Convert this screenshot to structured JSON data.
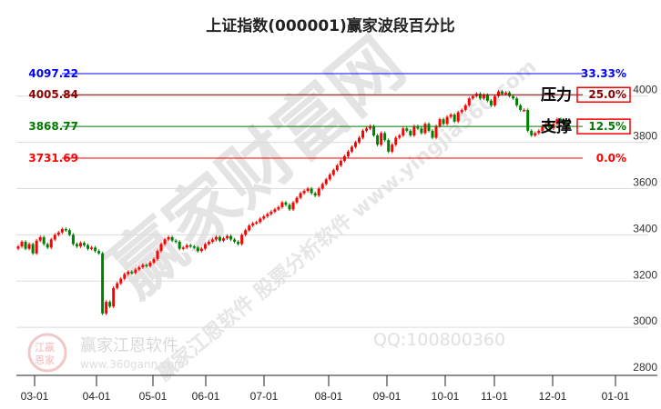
{
  "chart_data": {
    "type": "candlestick",
    "title": "上证指数(000001)赢家波段百分比",
    "x_tick_labels": [
      "03-01",
      "04-01",
      "05-01",
      "06-01",
      "07-01",
      "08-01",
      "09-01",
      "10-01",
      "11-01",
      "12-01",
      "01-01"
    ],
    "y_tick_labels": [
      "4000",
      "3800",
      "3600",
      "3400",
      "3200",
      "3000",
      "2800"
    ],
    "y_ticks": [
      4000,
      3800,
      3600,
      3400,
      3200,
      3000,
      2800
    ],
    "ylim": [
      2800,
      4097.22
    ],
    "grid": true,
    "closes": [
      3350,
      3370,
      3340,
      3360,
      3320,
      3375,
      3390,
      3360,
      3345,
      3380,
      3400,
      3410,
      3425,
      3420,
      3400,
      3360,
      3350,
      3365,
      3355,
      3340,
      3345,
      3330,
      3320,
      3060,
      3110,
      3090,
      3170,
      3190,
      3210,
      3230,
      3240,
      3235,
      3250,
      3260,
      3270,
      3265,
      3280,
      3295,
      3330,
      3360,
      3380,
      3390,
      3375,
      3370,
      3340,
      3345,
      3355,
      3350,
      3345,
      3330,
      3340,
      3360,
      3370,
      3380,
      3390,
      3375,
      3385,
      3395,
      3380,
      3370,
      3360,
      3400,
      3420,
      3440,
      3450,
      3455,
      3470,
      3480,
      3490,
      3500,
      3510,
      3520,
      3540,
      3530,
      3510,
      3540,
      3560,
      3580,
      3590,
      3600,
      3580,
      3570,
      3600,
      3620,
      3640,
      3660,
      3680,
      3700,
      3720,
      3740,
      3760,
      3780,
      3800,
      3820,
      3850,
      3860,
      3870,
      3830,
      3790,
      3840,
      3810,
      3760,
      3790,
      3820,
      3830,
      3860,
      3850,
      3830,
      3870,
      3860,
      3840,
      3880,
      3850,
      3820,
      3870,
      3900,
      3880,
      3910,
      3920,
      3890,
      3930,
      3940,
      3960,
      3990,
      4000,
      4010,
      3990,
      4005,
      3980,
      3960,
      4000,
      4020,
      4010,
      4015,
      4000,
      3990,
      3960,
      3940,
      3940,
      3850,
      3830,
      3840,
      3850,
      3870,
      3880,
      3860,
      3880,
      3900,
      3890,
      3880,
      3870
    ],
    "levels": [
      {
        "value": 4097.22,
        "label": "4097.22",
        "percent": "33.33%",
        "color": "#0000ff",
        "boxed": false
      },
      {
        "value": 4005.84,
        "label": "4005.84",
        "percent": "25.0%",
        "color": "#8b0000",
        "boxed": true,
        "tag": "压力"
      },
      {
        "value": 3868.77,
        "label": "3868.77",
        "percent": "12.5%",
        "color": "#007a00",
        "boxed": true,
        "tag": "支撑"
      },
      {
        "value": 3731.69,
        "label": "3731.69",
        "percent": "0.0%",
        "color": "#ff0000",
        "boxed": false
      }
    ],
    "up_color": "#ff0000",
    "down_color": "#008000"
  },
  "watermark": {
    "main": "赢家财富网",
    "sub": "赢家江恩软件 股票分析软件 www.yingjia360.com",
    "qq": "QQ:100800360",
    "logo_text": "赢家江恩软件",
    "logo_url": "www.360gann.com",
    "seal": "江赢恩家"
  }
}
